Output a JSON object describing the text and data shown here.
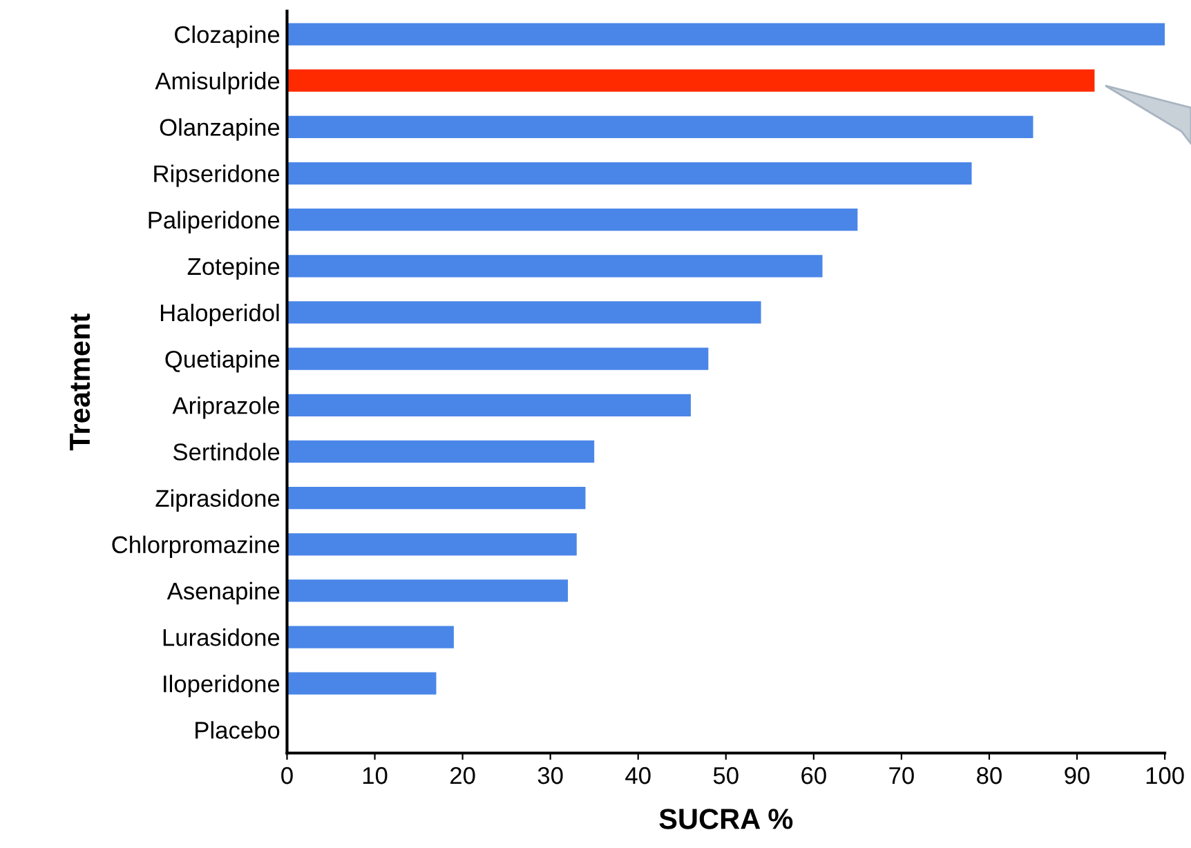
{
  "chart_data": {
    "type": "bar",
    "orientation": "horizontal",
    "xlabel": "SUCRA %",
    "ylabel": "Treatment",
    "categories": [
      "Clozapine",
      "Amisulpride",
      "Olanzapine",
      "Ripseridone",
      "Paliperidone",
      "Zotepine",
      "Haloperidol",
      "Quetiapine",
      "Ariprazole",
      "Sertindole",
      "Ziprasidone",
      "Chlorpromazine",
      "Asenapine",
      "Lurasidone",
      "Iloperidone",
      "Placebo"
    ],
    "values": [
      100,
      92,
      85,
      78,
      65,
      61,
      54,
      48,
      46,
      35,
      34,
      33,
      32,
      19,
      17,
      0
    ],
    "colors": [
      "#4a86e8",
      "#ff2a00",
      "#4a86e8",
      "#4a86e8",
      "#4a86e8",
      "#4a86e8",
      "#4a86e8",
      "#4a86e8",
      "#4a86e8",
      "#4a86e8",
      "#4a86e8",
      "#4a86e8",
      "#4a86e8",
      "#4a86e8",
      "#4a86e8",
      "#4a86e8"
    ],
    "xlim": [
      0,
      100
    ],
    "xticks": [
      0,
      10,
      20,
      30,
      40,
      50,
      60,
      70,
      80,
      90,
      100
    ],
    "grid": false,
    "legend": false
  }
}
